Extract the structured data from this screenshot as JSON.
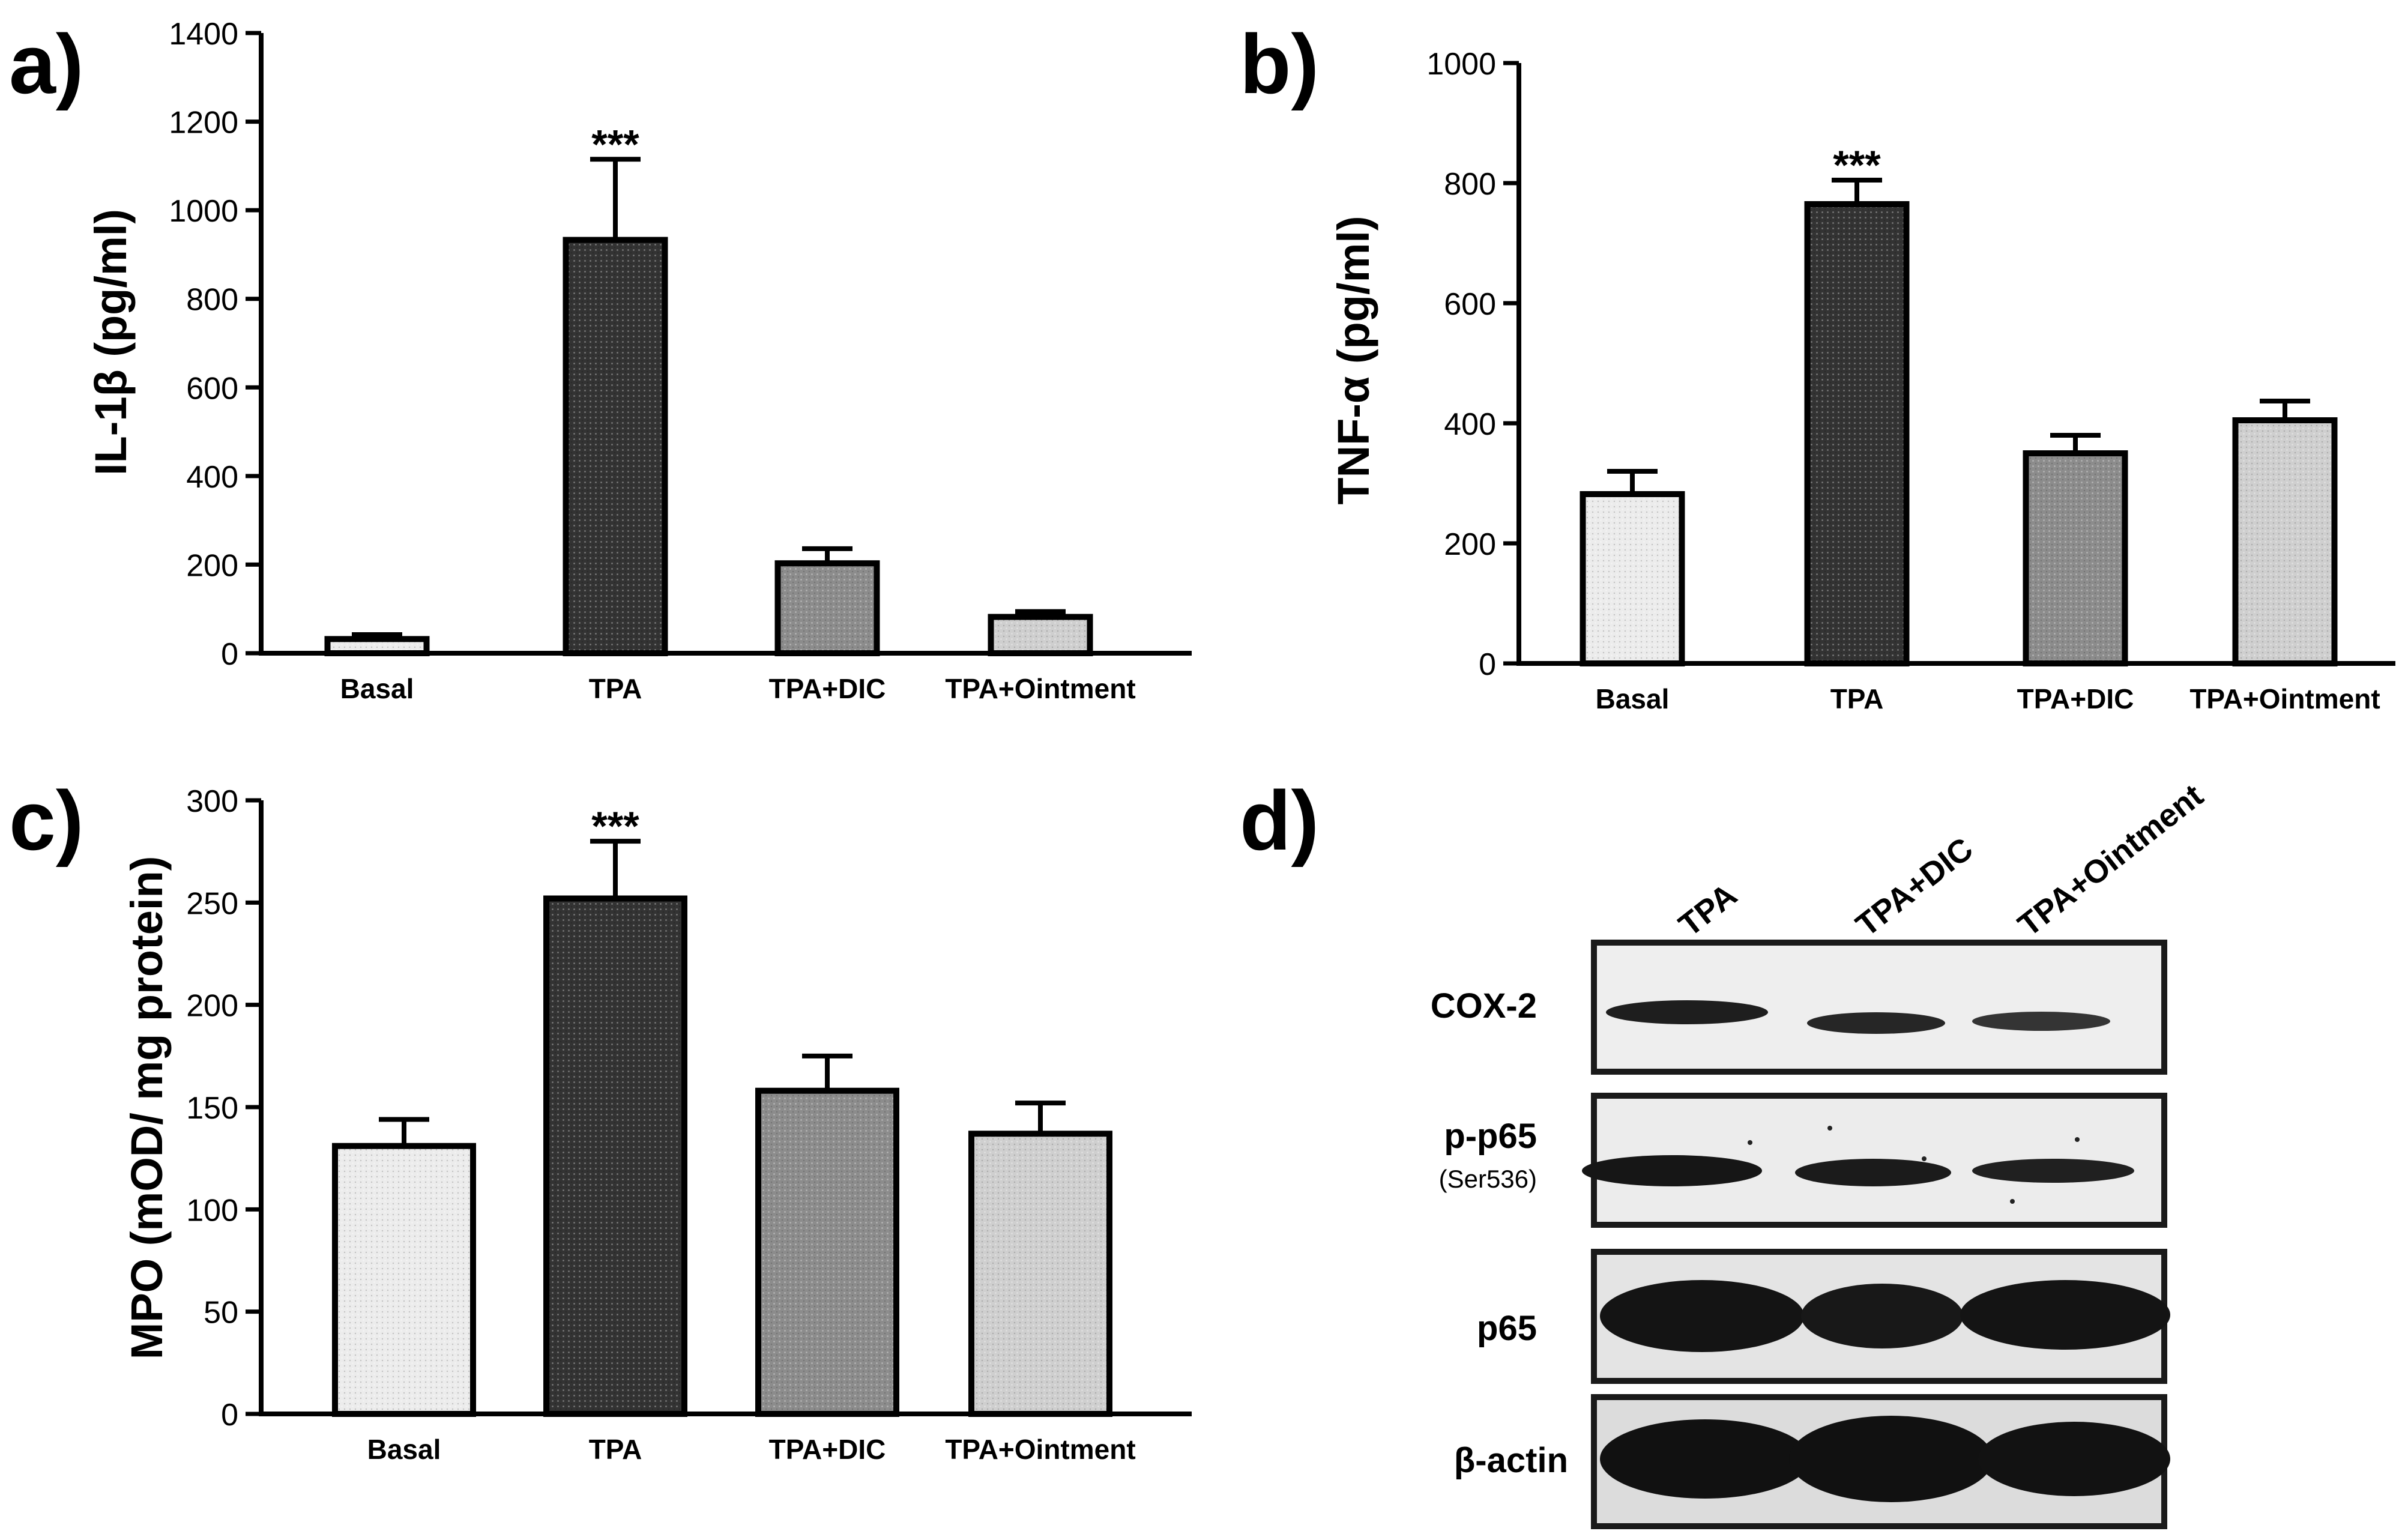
{
  "figure": {
    "panel_labels": [
      "a)",
      "b)",
      "c)",
      "d)"
    ]
  },
  "colors": {
    "Basal": "#ececec",
    "TPA": "#333333",
    "TPA+DIC": "#8c8c8c",
    "TPA+Ointment": "#cfcfcf",
    "axis": "#000000",
    "blot_bg": "#e6e6e6",
    "band": "#1c1c1c"
  },
  "chart_data": [
    {
      "panel": "a)",
      "type": "bar",
      "categories": [
        "Basal",
        "TPA",
        "TPA+DIC",
        "TPA+Ointment"
      ],
      "values": [
        32,
        933,
        203,
        82
      ],
      "errors": [
        10,
        182,
        33,
        12
      ],
      "significance": [
        "",
        "***",
        "",
        ""
      ],
      "title": "",
      "xlabel": "",
      "ylabel": "IL-1β (pg/ml)",
      "ylim": [
        0,
        1400
      ],
      "yticks": [
        0,
        200,
        400,
        600,
        800,
        1000,
        1200,
        1400
      ]
    },
    {
      "panel": "b)",
      "type": "bar",
      "categories": [
        "Basal",
        "TPA",
        "TPA+DIC",
        "TPA+Ointment"
      ],
      "values": [
        282,
        765,
        350,
        405
      ],
      "errors": [
        38,
        40,
        30,
        32
      ],
      "significance": [
        "",
        "***",
        "",
        ""
      ],
      "title": "",
      "xlabel": "",
      "ylabel": "TNF-α (pg/ml)",
      "ylim": [
        0,
        1000
      ],
      "yticks": [
        0,
        200,
        400,
        600,
        800,
        1000
      ]
    },
    {
      "panel": "c)",
      "type": "bar",
      "categories": [
        "Basal",
        "TPA",
        "TPA+DIC",
        "TPA+Ointment"
      ],
      "values": [
        131,
        252,
        158,
        137
      ],
      "errors": [
        13,
        28,
        17,
        15
      ],
      "significance": [
        "",
        "***",
        "",
        ""
      ],
      "title": "",
      "xlabel": "",
      "ylabel": "MPO (mOD/ mg protein)",
      "ylim": [
        0,
        300
      ],
      "yticks": [
        0,
        50,
        100,
        150,
        200,
        250,
        300
      ]
    }
  ],
  "western_blot": {
    "panel": "d)",
    "lanes": [
      "TPA",
      "TPA+DIC",
      "TPA+Ointment"
    ],
    "rows": [
      {
        "label": "COX-2",
        "sublabel": ""
      },
      {
        "label": "p-p65",
        "sublabel": "(Ser536)"
      },
      {
        "label": "p65",
        "sublabel": ""
      },
      {
        "label": "β-actin",
        "sublabel": ""
      }
    ]
  }
}
